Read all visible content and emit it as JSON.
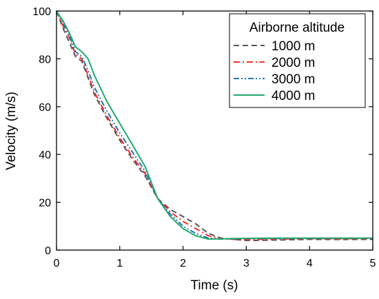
{
  "chart_data": {
    "type": "line",
    "title": "",
    "xlabel": "Time (s)",
    "ylabel": "Velocity (m/s)",
    "xlim": [
      0,
      5
    ],
    "ylim": [
      0,
      100
    ],
    "xticks": [
      0,
      1,
      2,
      3,
      4,
      5
    ],
    "yticks": [
      0,
      20,
      40,
      60,
      80,
      100
    ],
    "xtick_labels": [
      "0",
      "1",
      "2",
      "3",
      "4",
      "5"
    ],
    "ytick_labels": [
      "0",
      "20",
      "40",
      "60",
      "80",
      "100"
    ],
    "grid": false,
    "legend": {
      "title": "Airborne altitude",
      "placement": "top-right"
    },
    "series": [
      {
        "name": "1000 m",
        "color": "#555555",
        "dash": "dash",
        "x": [
          0,
          0.1,
          0.2,
          0.3,
          0.4,
          0.5,
          0.6,
          0.8,
          1.0,
          1.2,
          1.4,
          1.6,
          1.8,
          2.0,
          2.2,
          2.4,
          2.6,
          2.8,
          3.0,
          3.5,
          4.0,
          4.5,
          5.0
        ],
        "y": [
          100,
          93,
          87,
          81,
          79,
          72,
          65,
          55,
          46,
          38,
          31,
          21.5,
          17,
          14,
          11,
          7,
          5,
          4.5,
          4,
          4.2,
          4.5,
          4.4,
          4.5
        ]
      },
      {
        "name": "2000 m",
        "color": "#ff2a2a",
        "dash": "dashdot",
        "x": [
          0,
          0.1,
          0.2,
          0.3,
          0.4,
          0.5,
          0.6,
          0.8,
          1.0,
          1.2,
          1.4,
          1.6,
          1.8,
          2.0,
          2.2,
          2.4,
          2.6,
          2.8,
          3.0,
          3.5,
          4.0,
          4.5,
          5.0
        ],
        "y": [
          100,
          94,
          89,
          82,
          80,
          73,
          66,
          56,
          47,
          39,
          32,
          21.5,
          16,
          12,
          9,
          6,
          4.8,
          4.5,
          4.4,
          4.6,
          4.8,
          4.7,
          4.9
        ]
      },
      {
        "name": "3000 m",
        "color": "#1f77b4",
        "dash": "dashdotdot",
        "x": [
          0,
          0.1,
          0.2,
          0.3,
          0.4,
          0.5,
          0.6,
          0.8,
          1.0,
          1.2,
          1.4,
          1.6,
          1.8,
          2.0,
          2.2,
          2.4,
          2.6,
          2.8,
          3.0,
          3.5,
          4.0,
          4.5,
          5.0
        ],
        "y": [
          100,
          95,
          90,
          83,
          81,
          75,
          68,
          58,
          49,
          41,
          33,
          21.5,
          15,
          10,
          7,
          5,
          4.6,
          4.7,
          4.8,
          4.8,
          4.9,
          5.0,
          5.0
        ]
      },
      {
        "name": "4000 m",
        "color": "#1fa86b",
        "dash": "solid",
        "x": [
          0,
          0.1,
          0.2,
          0.3,
          0.4,
          0.5,
          0.6,
          0.8,
          1.0,
          1.2,
          1.4,
          1.6,
          1.8,
          2.0,
          2.2,
          2.4,
          2.6,
          2.8,
          3.0,
          3.5,
          4.0,
          4.5,
          5.0
        ],
        "y": [
          100,
          96,
          91,
          85,
          83,
          80,
          73,
          62,
          53,
          44,
          35,
          21.5,
          14,
          9,
          6,
          4.6,
          4.7,
          4.8,
          4.9,
          5.0,
          5.0,
          5.0,
          5.0
        ]
      }
    ]
  }
}
